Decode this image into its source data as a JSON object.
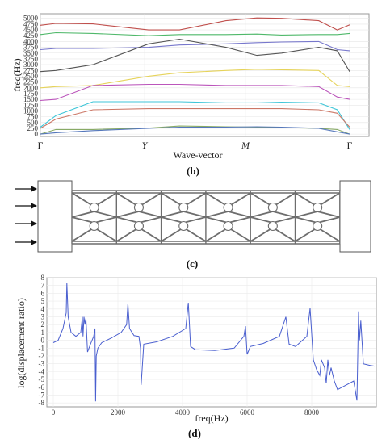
{
  "panel_b": {
    "caption": "(b)",
    "ylabel": "freq(Hz)",
    "xlabel": "Wave-vector",
    "x_ticks": [
      "Γ",
      "Y",
      "M",
      "Γ"
    ],
    "y_ticks": [
      "0",
      "250",
      "500",
      "750",
      "1000",
      "1250",
      "1500",
      "1750",
      "2000",
      "2250",
      "2500",
      "2750",
      "3000",
      "3250",
      "3500",
      "3750",
      "4000",
      "4250",
      "4500",
      "4750",
      "5000"
    ]
  },
  "panel_c": {
    "caption": "(c)"
  },
  "panel_d": {
    "caption": "(d)",
    "ylabel": "log(displacement  ratio)",
    "xlabel": "freq(Hz)",
    "x_ticks": [
      "0",
      "2000",
      "4000",
      "6000",
      "8000"
    ],
    "y_ticks": [
      "8",
      "7",
      "6",
      "5",
      "4",
      "3",
      "2",
      "1",
      "0",
      "-1",
      "-2",
      "-3",
      "-4",
      "-5",
      "-6",
      "-7",
      "-8"
    ]
  },
  "chart_data": [
    {
      "type": "line",
      "title": "",
      "xlabel": "Wave-vector",
      "ylabel": "freq(Hz)",
      "ylim": [
        -100,
        5200
      ],
      "x_positions": [
        "Γ",
        "Y",
        "M",
        "Γ"
      ],
      "grid": true,
      "x": [
        0,
        0.05,
        0.17,
        0.35,
        0.45,
        0.6,
        0.7,
        0.78,
        0.9,
        0.96,
        1.0
      ],
      "series": [
        {
          "color": "#c0504d",
          "values": [
            4700,
            4780,
            4760,
            4500,
            4500,
            4900,
            5020,
            5000,
            4900,
            4500,
            4720
          ]
        },
        {
          "color": "#4fb86a",
          "values": [
            4300,
            4380,
            4350,
            4250,
            4300,
            4300,
            4320,
            4280,
            4300,
            4300,
            4350
          ]
        },
        {
          "color": "#7777cc",
          "values": [
            3650,
            3700,
            3700,
            3750,
            3850,
            3900,
            3950,
            3980,
            4000,
            3650,
            3600
          ]
        },
        {
          "color": "#555555",
          "values": [
            2700,
            2750,
            3000,
            3900,
            4100,
            3750,
            3400,
            3500,
            3750,
            3600,
            2700
          ]
        },
        {
          "color": "#e6d35a",
          "values": [
            2000,
            2050,
            2100,
            2500,
            2650,
            2750,
            2800,
            2780,
            2750,
            2100,
            2050
          ]
        },
        {
          "color": "#bb55bb",
          "values": [
            1450,
            1500,
            2100,
            2150,
            2150,
            2100,
            2100,
            2100,
            2050,
            1600,
            1500
          ]
        },
        {
          "color": "#3fc6d8",
          "values": [
            300,
            800,
            1400,
            1400,
            1400,
            1350,
            1350,
            1380,
            1350,
            1050,
            200
          ]
        },
        {
          "color": "#cc7766",
          "values": [
            250,
            650,
            1050,
            1100,
            1100,
            1100,
            1100,
            1100,
            1050,
            900,
            300
          ]
        },
        {
          "color": "#88aa66",
          "values": [
            0,
            200,
            200,
            260,
            350,
            320,
            300,
            280,
            250,
            200,
            0
          ]
        },
        {
          "color": "#5577bb",
          "values": [
            0,
            60,
            150,
            250,
            300,
            300,
            320,
            300,
            250,
            100,
            0
          ]
        }
      ]
    },
    {
      "type": "line",
      "title": "",
      "xlabel": "freq(Hz)",
      "ylabel": "log(displacement  ratio)",
      "xlim": [
        -200,
        10000
      ],
      "ylim": [
        -8.5,
        8
      ],
      "grid": true,
      "series": [
        {
          "color": "#4a5fcf",
          "x": [
            0,
            150,
            300,
            400,
            420,
            460,
            550,
            700,
            850,
            900,
            920,
            950,
            980,
            1010,
            1060,
            1150,
            1250,
            1290,
            1310,
            1330,
            1380,
            1500,
            1800,
            2100,
            2270,
            2310,
            2360,
            2500,
            2650,
            2700,
            2720,
            2800,
            3200,
            3700,
            4100,
            4180,
            4250,
            4400,
            5000,
            5600,
            5900,
            5950,
            6000,
            6100,
            6500,
            7000,
            7200,
            7300,
            7500,
            7850,
            7950,
            8050,
            8150,
            8250,
            8300,
            8400,
            8450,
            8500,
            8550,
            8600,
            8700,
            8800,
            9300,
            9400,
            9450,
            9480,
            9520,
            9600,
            9800,
            9950
          ],
          "y": [
            -0.3,
            0,
            1.5,
            3.5,
            7.3,
            3,
            1,
            0.5,
            1,
            3,
            0.5,
            3,
            2,
            2.8,
            -1.5,
            -0.5,
            0.5,
            1.5,
            -7.8,
            -2,
            -1,
            -0.3,
            0.3,
            1,
            2,
            4.7,
            1.5,
            0.6,
            0.5,
            -1,
            -5.7,
            -0.5,
            -0.2,
            0.5,
            1.5,
            4.8,
            -0.8,
            -1.2,
            -1.3,
            -1,
            0.5,
            1.8,
            -1.8,
            -0.8,
            -0.4,
            0.5,
            3,
            -0.5,
            -0.8,
            0.5,
            4.1,
            -2.5,
            -3.7,
            -4.5,
            -2.5,
            -3.5,
            -5.5,
            -2.5,
            -4.5,
            -3.5,
            -5.2,
            -6.3,
            -5.2,
            -7.7,
            3.7,
            0,
            2.5,
            -3,
            -3.2,
            -3.3
          ]
        }
      ]
    }
  ]
}
